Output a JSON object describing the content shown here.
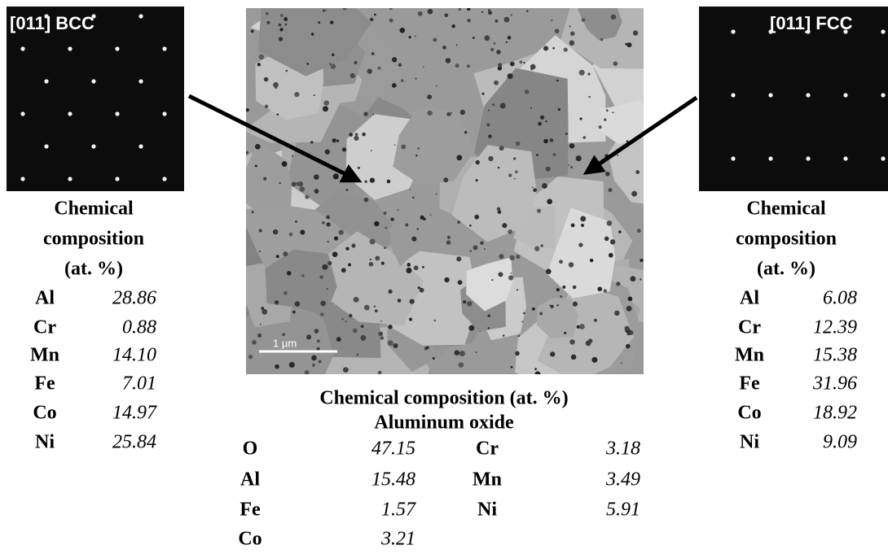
{
  "left_panel": {
    "label": "[011] BCC",
    "table_title": [
      "Chemical",
      "composition",
      "(at. %)"
    ],
    "rows": [
      [
        "Al",
        "28.86"
      ],
      [
        "Cr",
        "0.88"
      ],
      [
        "Mn",
        "14.10"
      ],
      [
        "Fe",
        "7.01"
      ],
      [
        "Co",
        "14.97"
      ],
      [
        "Ni",
        "25.84"
      ]
    ]
  },
  "center_panel": {
    "scale_bar": "1 µm",
    "table_title": "Chemical composition (at. %)",
    "subtitle": "Aluminum oxide",
    "rows": [
      [
        "O",
        "47.15",
        "Cr",
        "3.18"
      ],
      [
        "Al",
        "15.48",
        "Mn",
        "3.49"
      ],
      [
        "Fe",
        "1.57",
        "Ni",
        "5.91"
      ],
      [
        "Co",
        "3.21"
      ]
    ]
  },
  "right_panel": {
    "label": "[011] FCC",
    "table_title": [
      "Chemical",
      "composition",
      "(at. %)"
    ],
    "rows": [
      [
        "Al",
        "6.08"
      ],
      [
        "Cr",
        "12.39"
      ],
      [
        "Mn",
        "15.38"
      ],
      [
        "Fe",
        "31.96"
      ],
      [
        "Co",
        "18.92"
      ],
      [
        "Ni",
        "9.09"
      ]
    ]
  }
}
